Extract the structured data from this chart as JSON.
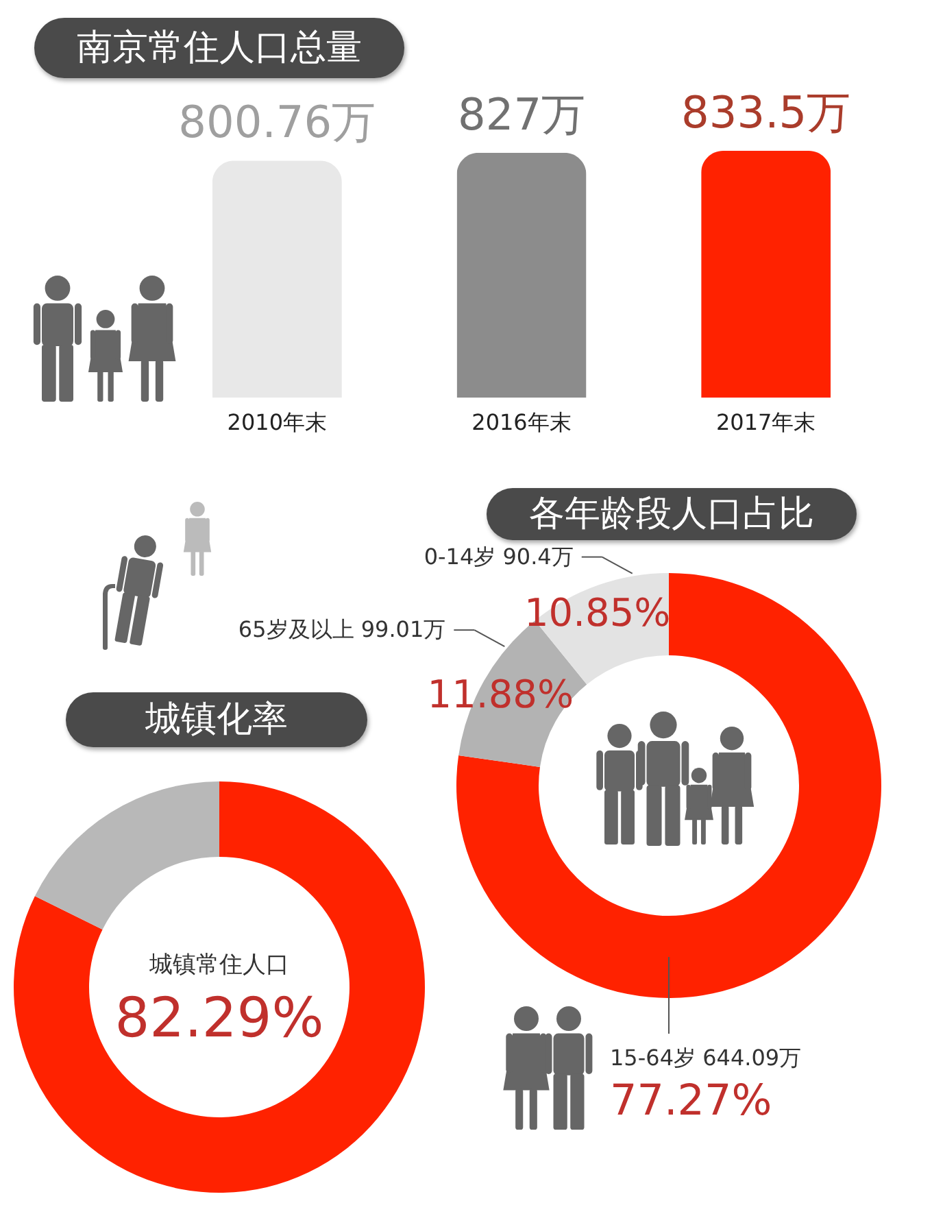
{
  "chart_data": [
    {
      "type": "bar",
      "title": "南京常住人口总量",
      "categories": [
        "2010年末",
        "2016年末",
        "2017年末"
      ],
      "values": [
        800.76,
        827,
        833.5
      ],
      "colors": [
        "#e8e8e8",
        "#8c8c8c",
        "#ff2200"
      ],
      "value_labels": [
        "800.76万",
        "827万",
        "833.5万"
      ],
      "tick_labels": "x"
    },
    {
      "type": "donut",
      "title": "各年龄段人口占比",
      "categories": [
        "15-64岁 644.09万",
        "65岁及以上 99.01万",
        "0-14岁 90.4万"
      ],
      "values": [
        77.27,
        11.88,
        10.85
      ],
      "colors": [
        "#ff2200",
        "#b3b3b3",
        "#e3e3e3"
      ],
      "value_labels": [
        "77.27%",
        "11.88%",
        "10.85%"
      ]
    },
    {
      "type": "donut",
      "title": "城镇化率",
      "categories": [
        "城镇常住人口",
        null
      ],
      "values": [
        82.29,
        17.71
      ],
      "colors": [
        "#ff2200",
        "#b8b8b8"
      ],
      "value_labels": [
        "82.29%",
        null
      ]
    }
  ]
}
